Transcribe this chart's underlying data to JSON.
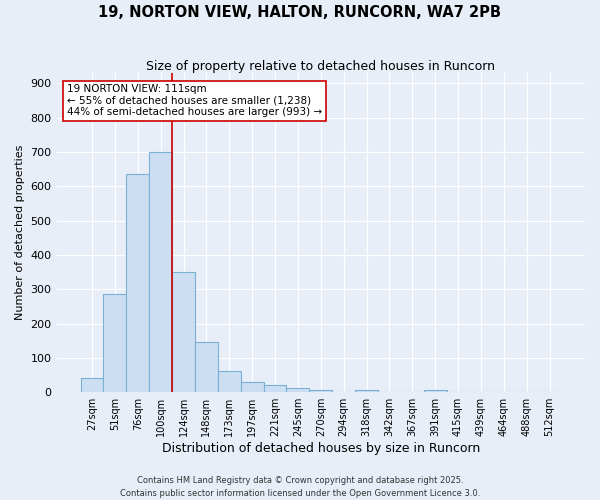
{
  "title": "19, NORTON VIEW, HALTON, RUNCORN, WA7 2PB",
  "subtitle": "Size of property relative to detached houses in Runcorn",
  "xlabel": "Distribution of detached houses by size in Runcorn",
  "ylabel": "Number of detached properties",
  "bar_labels": [
    "27sqm",
    "51sqm",
    "76sqm",
    "100sqm",
    "124sqm",
    "148sqm",
    "173sqm",
    "197sqm",
    "221sqm",
    "245sqm",
    "270sqm",
    "294sqm",
    "318sqm",
    "342sqm",
    "367sqm",
    "391sqm",
    "415sqm",
    "439sqm",
    "464sqm",
    "488sqm",
    "512sqm"
  ],
  "bar_values": [
    42,
    285,
    635,
    700,
    350,
    145,
    63,
    30,
    20,
    12,
    7,
    0,
    7,
    0,
    0,
    7,
    0,
    0,
    0,
    0,
    0
  ],
  "bar_color": "#ccdff2",
  "bar_edge_color": "#7bafd4",
  "bg_color": "#e8eef8",
  "grid_color": "#ffffff",
  "vline_x": 3.5,
  "vline_color": "#cc0000",
  "annotation_line1": "19 NORTON VIEW: 111sqm",
  "annotation_line2": "← 55% of detached houses are smaller (1,238)",
  "annotation_line3": "44% of semi-detached houses are larger (993) →",
  "annotation_box_color": "#ffffff",
  "annotation_edge_color": "#cc0000",
  "ylim": [
    0,
    930
  ],
  "yticks": [
    0,
    100,
    200,
    300,
    400,
    500,
    600,
    700,
    800,
    900
  ],
  "footer_line1": "Contains HM Land Registry data © Crown copyright and database right 2025.",
  "footer_line2": "Contains public sector information licensed under the Open Government Licence 3.0.",
  "title_fontsize": 10.5,
  "subtitle_fontsize": 9,
  "xlabel_fontsize": 9,
  "ylabel_fontsize": 8,
  "tick_labelsize": 8,
  "xtick_labelsize": 7,
  "annotation_fontsize": 7.5,
  "footer_fontsize": 6
}
